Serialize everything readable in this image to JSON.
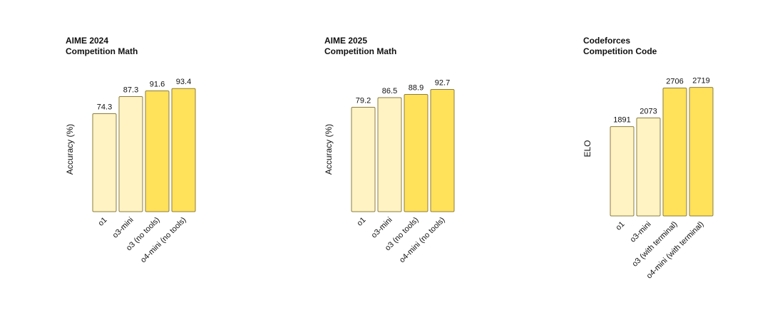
{
  "chart_data": [
    {
      "type": "bar",
      "title": "AIME 2024",
      "subtitle": "Competition Math",
      "ylabel": "Accuracy (%)",
      "categories": [
        "o1",
        "o3-mini",
        "o3 (no tools)",
        "o4-mini (no tools)"
      ],
      "values": [
        74.3,
        87.3,
        91.6,
        93.4
      ],
      "colors": [
        "#fff3c4",
        "#fff3c4",
        "#ffe15a",
        "#ffe15a"
      ],
      "ylim": [
        0,
        100
      ]
    },
    {
      "type": "bar",
      "title": "AIME 2025",
      "subtitle": "Competition Math",
      "ylabel": "Accuracy (%)",
      "categories": [
        "o1",
        "o3-mini",
        "o3 (no tools)",
        "o4-mini (no tools)"
      ],
      "values": [
        79.2,
        86.5,
        88.9,
        92.7
      ],
      "colors": [
        "#fff3c4",
        "#fff3c4",
        "#ffe15a",
        "#ffe15a"
      ],
      "ylim": [
        0,
        100
      ]
    },
    {
      "type": "bar",
      "title": "Codeforces",
      "subtitle": "Competition Code",
      "ylabel": "ELO",
      "categories": [
        "o1",
        "o3-mini",
        "o3 (with terminal)",
        "o4-mini (with terminal)"
      ],
      "values": [
        1891,
        2073,
        2706,
        2719
      ],
      "colors": [
        "#fff3c4",
        "#fff3c4",
        "#ffe15a",
        "#ffe15a"
      ],
      "ylim": [
        0,
        3000
      ]
    }
  ]
}
